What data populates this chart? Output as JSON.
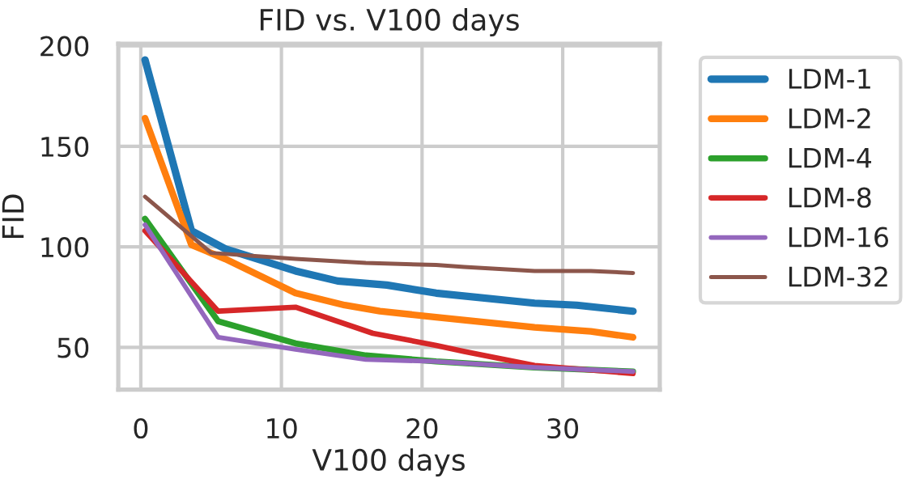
{
  "chart_data": {
    "type": "line",
    "title": "FID vs. V100 days",
    "xlabel": "V100 days",
    "ylabel": "FID",
    "xlim": [
      -1.6,
      36.9
    ],
    "xticks": [
      0,
      10,
      20,
      30
    ],
    "ylim": [
      29,
      201
    ],
    "yticks": [
      50,
      100,
      150,
      200
    ],
    "grid": true,
    "legend": "top right",
    "line_style": "solid",
    "marker": "none",
    "series": [
      {
        "name": "LDM-1",
        "color": "#1f77b4",
        "x": [
          0.3,
          3.6,
          6,
          11,
          14,
          17.5,
          21,
          28,
          31,
          35
        ],
        "values": [
          193,
          108,
          99,
          88,
          83,
          81,
          77,
          72,
          71,
          68
        ]
      },
      {
        "name": "LDM-2",
        "color": "#ff7f0e",
        "x": [
          0.3,
          3.6,
          6,
          11,
          14.5,
          17,
          21,
          28,
          32,
          35
        ],
        "values": [
          164,
          101,
          94,
          77,
          71,
          68,
          65,
          60,
          58,
          55
        ]
      },
      {
        "name": "LDM-4",
        "color": "#2ca02c",
        "x": [
          0.3,
          5.5,
          11,
          16,
          21,
          28,
          35
        ],
        "values": [
          114,
          63,
          52,
          46,
          43,
          40,
          38
        ]
      },
      {
        "name": "LDM-8",
        "color": "#d62728",
        "x": [
          0.3,
          5.5,
          11,
          16.5,
          21,
          23,
          28,
          35
        ],
        "values": [
          108,
          68,
          70,
          57,
          51,
          48,
          41,
          37
        ]
      },
      {
        "name": "LDM-16",
        "color": "#9467bd",
        "x": [
          0.3,
          5.5,
          11,
          16,
          21,
          28,
          35
        ],
        "values": [
          111,
          55,
          49,
          44,
          43,
          40,
          38
        ]
      },
      {
        "name": "LDM-32",
        "color": "#8c564b",
        "x": [
          0.3,
          5,
          11,
          16,
          21,
          23,
          28,
          32,
          35
        ],
        "values": [
          125,
          97,
          94,
          92,
          91,
          90,
          88,
          88,
          87
        ]
      }
    ]
  }
}
